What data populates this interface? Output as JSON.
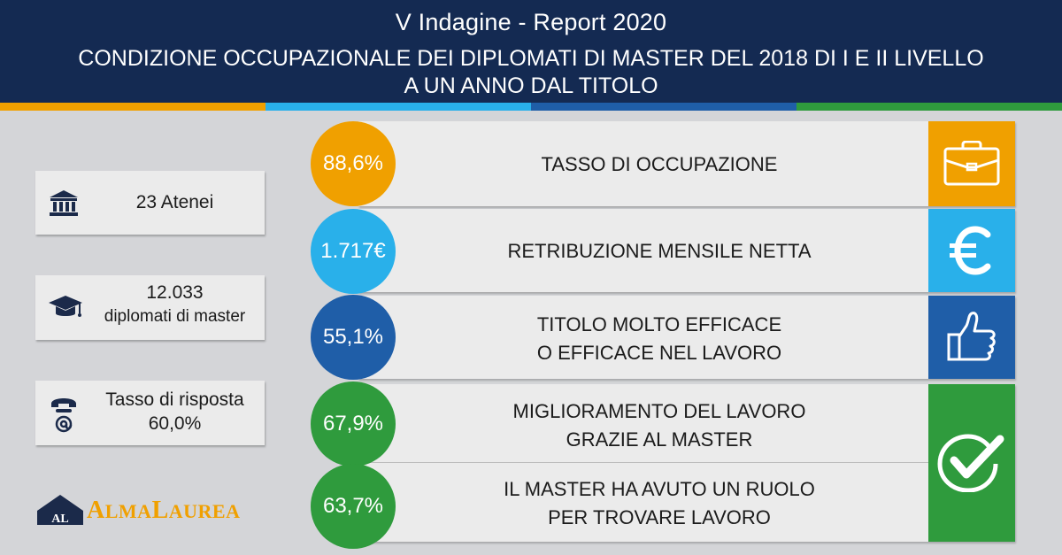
{
  "header": {
    "title": "V Indagine - Report 2020",
    "subtitle_line1": "CONDIZIONE OCCUPAZIONALE DEI DIPLOMATI DI MASTER DEL 2018 DI I E II LIVELLO",
    "subtitle_line2": "A UN ANNO DAL TITOLO"
  },
  "stripe_colors": [
    "#f0a000",
    "#29b0ea",
    "#1f5ea8",
    "#2f9b3d"
  ],
  "info": {
    "atenei": {
      "icon": "university-building-icon",
      "text": "23 Atenei"
    },
    "diplomati": {
      "icon": "graduation-cap-icon",
      "count": "12.033",
      "text": "diplomati di master"
    },
    "risposta": {
      "icon": "phone-at-icon",
      "label": "Tasso di risposta",
      "value": "60,0%"
    }
  },
  "logo": {
    "text": "ALMALAUREA",
    "mark": "AL"
  },
  "rows": [
    {
      "value": "88,6%",
      "label1": "TASSO DI OCCUPAZIONE",
      "label2": "",
      "color": "#f0a000",
      "icon": "briefcase-icon"
    },
    {
      "value": "1.717€",
      "label1": "RETRIBUZIONE MENSILE NETTA",
      "label2": "",
      "color": "#29b0ea",
      "icon": "euro-icon"
    },
    {
      "value": "55,1%",
      "label1": "TITOLO MOLTO EFFICACE",
      "label2": "O EFFICACE NEL LAVORO",
      "color": "#1f5ea8",
      "icon": "thumbs-up-icon"
    },
    {
      "value": "67,9%",
      "label1": "MIGLIORAMENTO DEL LAVORO",
      "label2": "GRAZIE AL MASTER",
      "color": "#2f9b3d",
      "icon": "checkmark-icon"
    },
    {
      "value": "63,7%",
      "label1": "IL MASTER HA AVUTO UN RUOLO",
      "label2": "PER TROVARE LAVORO",
      "color": "#2f9b3d",
      "icon": "checkmark-icon"
    }
  ]
}
